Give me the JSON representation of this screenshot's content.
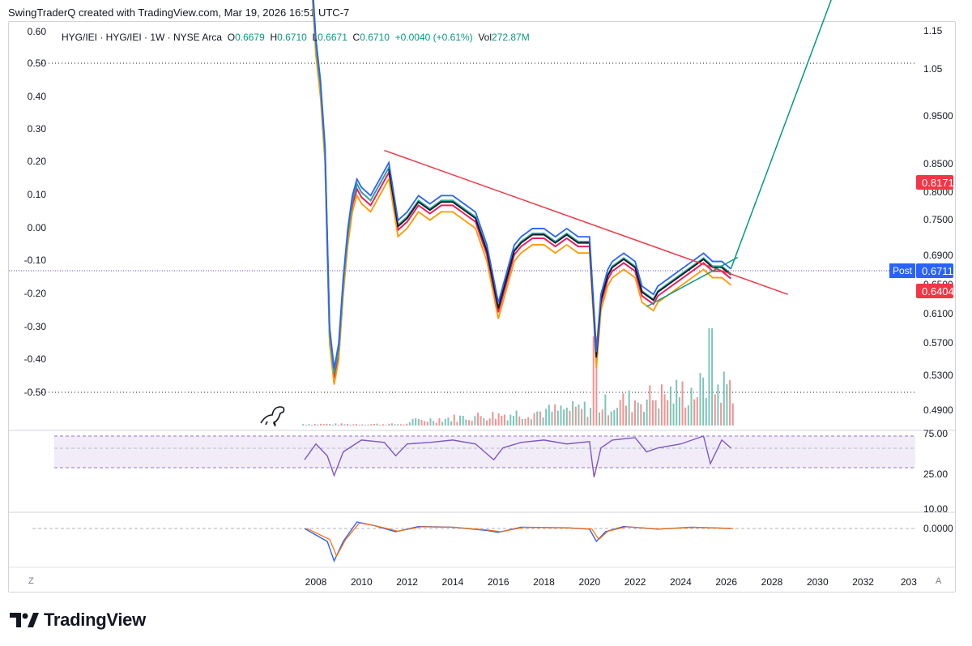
{
  "header": {
    "attribution": "SwingTraderQ created with TradingView.com, Mar 19, 2026 16:51 UTC-7"
  },
  "legend": {
    "symbol": "HYG/IEI · HYG/IEI · 1W · NYSE Arca",
    "open_label": "O",
    "open": "0.6679",
    "high_label": "H",
    "high": "0.6710",
    "low_label": "L",
    "low": "0.6671",
    "close_label": "C",
    "close": "0.6710",
    "change": "+0.0040 (+0.61%)",
    "vol_label": "Vol",
    "vol": "272.87M"
  },
  "corner": {
    "left": "Z",
    "right": "A"
  },
  "brand": {
    "name": "TradingView"
  },
  "colors": {
    "up": "#089981",
    "down": "#f23645",
    "price_line": "#2962ff",
    "rsi": "#7e57c2",
    "trendline": "#f23645",
    "arrow": "#089981"
  },
  "chart_data": [
    {
      "type": "line",
      "title": "HYG/IEI · HYG/IEI · 1W · NYSE Arca",
      "xlabel": "",
      "ylabel": "",
      "x_ticks": [
        "2008",
        "2010",
        "2012",
        "2014",
        "2016",
        "2018",
        "2020",
        "2022",
        "2024",
        "2026",
        "2028",
        "2030",
        "2032",
        "203"
      ],
      "y_right_ticks": [
        "1.15",
        "1.05",
        "0.9500",
        "0.8500",
        "0.8000",
        "0.7500",
        "0.6900",
        "0.6500",
        "0.6100",
        "0.5700",
        "0.5300",
        "0.4900"
      ],
      "y_left_ticks": [
        "0.60",
        "0.50",
        "0.40",
        "0.30",
        "0.20",
        "0.10",
        "0.00",
        "-0.10",
        "-0.20",
        "-0.30",
        "-0.40",
        "-0.50"
      ],
      "price_badges": [
        {
          "label": "",
          "value": "0.8171",
          "color": "#f23645"
        },
        {
          "label": "Post",
          "value": "0.6711",
          "color": "#2962ff"
        },
        {
          "label": "",
          "value": "0.6404",
          "color": "#f23645"
        }
      ],
      "series": [
        {
          "name": "",
          "x": [
            2007.4,
            2007.6,
            2007.8,
            2008.0,
            2008.2,
            2008.4,
            2008.6,
            2008.8,
            2009.0,
            2009.2,
            2009.4,
            2009.6,
            2009.8,
            2010.0,
            2010.4,
            2010.8,
            2011.2,
            2011.6,
            2012.0,
            2012.5,
            2013.0,
            2013.5,
            2014.0,
            2014.5,
            2015.0,
            2015.5,
            2016.0,
            2016.3,
            2016.7,
            2017.0,
            2017.5,
            2018.0,
            2018.5,
            2019.0,
            2019.5,
            2020.0,
            2020.2,
            2020.3,
            2020.5,
            2020.8,
            2021.0,
            2021.5,
            2022.0,
            2022.3,
            2022.8,
            2023.0,
            2023.5,
            2024.0,
            2024.5,
            2025.0,
            2025.4,
            2025.8,
            2026.2
          ],
          "values": [
            1.1,
            1.07,
            1.04,
            0.95,
            0.9,
            0.82,
            0.6,
            0.55,
            0.58,
            0.66,
            0.72,
            0.76,
            0.78,
            0.77,
            0.76,
            0.78,
            0.8,
            0.73,
            0.74,
            0.76,
            0.75,
            0.76,
            0.76,
            0.75,
            0.74,
            0.7,
            0.63,
            0.66,
            0.7,
            0.71,
            0.72,
            0.72,
            0.71,
            0.72,
            0.71,
            0.71,
            0.62,
            0.57,
            0.64,
            0.67,
            0.68,
            0.69,
            0.68,
            0.65,
            0.64,
            0.65,
            0.66,
            0.67,
            0.68,
            0.69,
            0.68,
            0.68,
            0.671
          ]
        }
      ],
      "trendline_upper": {
        "x": [
          2011.0,
          2028.7
        ],
        "y": [
          0.815,
          0.64
        ]
      },
      "trendline_lower": {
        "x": [
          2022.5,
          2026.5
        ],
        "y": [
          0.625,
          0.685
        ]
      },
      "projection": {
        "x": [
          2026.2,
          2031.3
        ],
        "y": [
          0.671,
          1.05
        ]
      }
    },
    {
      "type": "line",
      "title": "",
      "y_ticks": [
        "75.00",
        "25.00",
        "10.00"
      ],
      "band": [
        30,
        70
      ],
      "series": [
        {
          "name": "",
          "x": [
            2007.5,
            2008.0,
            2008.5,
            2008.8,
            2009.2,
            2010.0,
            2011.0,
            2011.5,
            2012.0,
            2013.0,
            2014.0,
            2015.0,
            2015.8,
            2016.2,
            2017.0,
            2018.0,
            2019.0,
            2020.0,
            2020.2,
            2020.5,
            2021.0,
            2022.0,
            2022.5,
            2023.0,
            2024.0,
            2025.0,
            2025.3,
            2025.8,
            2026.2
          ],
          "values": [
            40,
            60,
            45,
            20,
            50,
            65,
            62,
            45,
            60,
            62,
            65,
            60,
            40,
            55,
            62,
            65,
            60,
            63,
            18,
            55,
            65,
            68,
            50,
            55,
            60,
            70,
            35,
            65,
            55
          ]
        }
      ]
    },
    {
      "type": "line",
      "title": "",
      "y_ticks": [
        "0.0000"
      ],
      "series": [
        {
          "name": "",
          "x": [
            2007.5,
            2008.0,
            2008.5,
            2008.8,
            2009.2,
            2009.8,
            2010.5,
            2011.5,
            2012.5,
            2014.0,
            2015.5,
            2016.0,
            2017.0,
            2019.0,
            2020.0,
            2020.3,
            2020.7,
            2021.5,
            2023.0,
            2024.5,
            2026.2
          ],
          "values": [
            0.0,
            -0.01,
            -0.02,
            -0.05,
            -0.02,
            0.01,
            0.005,
            -0.005,
            0.003,
            0.002,
            -0.003,
            -0.006,
            0.002,
            0.001,
            -0.001,
            -0.02,
            -0.005,
            0.003,
            -0.001,
            0.002,
            0.0
          ]
        }
      ]
    }
  ]
}
